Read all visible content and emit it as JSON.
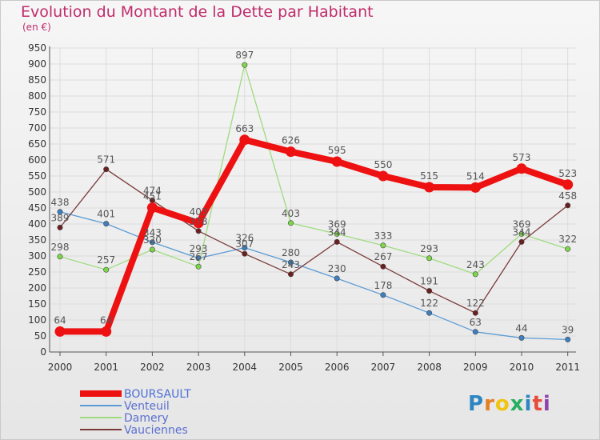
{
  "title": "Evolution du Montant de la Dette par Habitant",
  "subtitle": "(en €)",
  "logo": {
    "text": "Proxiti",
    "letter_colors": [
      "#2e86c1",
      "#e67e22",
      "#f1c40f",
      "#27ae60",
      "#2e86c1",
      "#e74c3c",
      "#8e44ad"
    ]
  },
  "chart_data": {
    "type": "line",
    "title": "Evolution du Montant de la Dette par Habitant",
    "subtitle": "(en €)",
    "xlabel": "",
    "ylabel": "",
    "x": [
      "2000",
      "2001",
      "2002",
      "2003",
      "2004",
      "2005",
      "2006",
      "2007",
      "2008",
      "2009",
      "2010",
      "2011"
    ],
    "ylim": [
      0,
      950
    ],
    "yticks": [
      0,
      50,
      100,
      150,
      200,
      250,
      300,
      350,
      400,
      450,
      500,
      550,
      600,
      650,
      700,
      750,
      800,
      850,
      900,
      950
    ],
    "grid": true,
    "legend_position": "bottom-left",
    "series": [
      {
        "name": "Venteuil",
        "color": "#5b9bd5",
        "marker": "#3d7fbf",
        "values": [
          438,
          401,
          343,
          293,
          326,
          280,
          230,
          178,
          122,
          63,
          44,
          39
        ]
      },
      {
        "name": "Damery",
        "color": "#9fdb7f",
        "marker": "#7dd64a",
        "values": [
          298,
          257,
          320,
          267,
          897,
          403,
          369,
          333,
          293,
          243,
          369,
          322
        ]
      },
      {
        "name": "Vauciennes",
        "color": "#7a3a3a",
        "marker": "#6b1f1f",
        "values": [
          389,
          571,
          474,
          378,
          307,
          243,
          344,
          267,
          191,
          122,
          344,
          458
        ]
      },
      {
        "name": "BOURSAULT",
        "color": "#ee1111",
        "marker": "#ee1111",
        "values": [
          64,
          64,
          451,
          403,
          663,
          626,
          595,
          550,
          515,
          514,
          573,
          523
        ]
      }
    ],
    "legend_order": [
      "BOURSAULT",
      "Venteuil",
      "Damery",
      "Vauciennes"
    ]
  }
}
